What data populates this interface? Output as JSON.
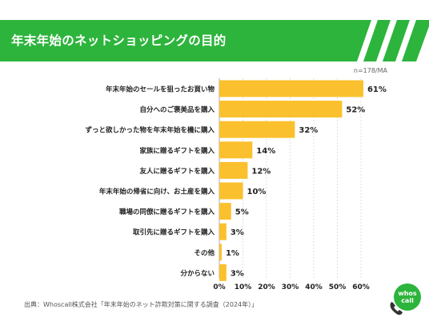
{
  "header": {
    "title": "年末年始のネットショッピングの目的"
  },
  "note": "n=178/MA",
  "source": "出典：Whoscall株式会社「年末年始のネット詐欺対策に関する調査（2024年）」",
  "logo": {
    "text_line1": "whos",
    "text_line2": "call",
    "icon": "phone-icon"
  },
  "colors": {
    "accent": "#2db43c",
    "bar": "#fbc02d",
    "grid": "#cccccc"
  },
  "chart_data": {
    "type": "bar",
    "orientation": "horizontal",
    "categories": [
      "年末年始のセールを狙ったお買い物",
      "自分へのご褒美品を購入",
      "ずっと欲しかった物を年末年始を機に購入",
      "家族に贈るギフトを購入",
      "友人に贈るギフトを購入",
      "年末年始の帰省に向け、お土産を購入",
      "職場の同僚に贈るギフトを購入",
      "取引先に贈るギフトを購入",
      "その他",
      "分からない"
    ],
    "values": [
      61,
      52,
      32,
      14,
      12,
      10,
      5,
      3,
      1,
      3
    ],
    "value_labels": [
      "61%",
      "52%",
      "32%",
      "14%",
      "12%",
      "10%",
      "5%",
      "3%",
      "1%",
      "3%"
    ],
    "xticks": [
      "0%",
      "10%",
      "20%",
      "30%",
      "40%",
      "50%",
      "60%"
    ],
    "xlim": [
      0,
      60
    ],
    "grid": true,
    "title": "年末年始のネットショッピングの目的",
    "xlabel": "",
    "ylabel": ""
  }
}
